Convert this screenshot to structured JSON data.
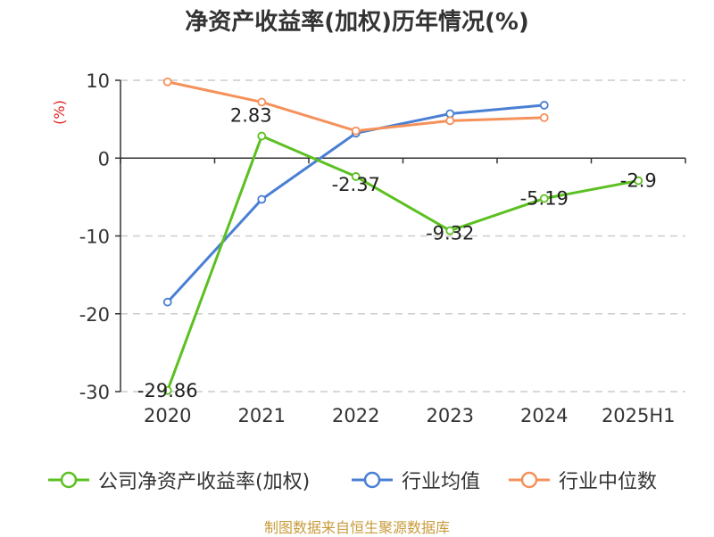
{
  "chart_data": {
    "type": "line",
    "title": "净资产收益率(加权)历年情况(%)",
    "ylabel": "(%)",
    "categories": [
      "2020",
      "2021",
      "2022",
      "2023",
      "2024",
      "2025H1"
    ],
    "ylim": [
      -30,
      10
    ],
    "yticks": [
      10,
      0,
      -10,
      -20,
      -30
    ],
    "grid": true,
    "legend_position": "bottom",
    "series": [
      {
        "name": "公司净资产收益率(加权)",
        "color": "#5cc021",
        "values": [
          -29.86,
          2.83,
          -2.37,
          -9.32,
          -5.19,
          -2.9
        ],
        "labels": [
          "-29.86",
          "2.83",
          "-2.37",
          "-9.32",
          "-5.19",
          "-2.9"
        ]
      },
      {
        "name": "行业均值",
        "color": "#4a7fd4",
        "values": [
          -18.5,
          -5.3,
          3.2,
          5.7,
          6.8,
          null
        ]
      },
      {
        "name": "行业中位数",
        "color": "#f5915a",
        "values": [
          9.8,
          7.2,
          3.5,
          4.8,
          5.2,
          null
        ]
      }
    ]
  },
  "source": "制图数据来自恒生聚源数据库",
  "colors": {
    "title": "#333333",
    "ylabel": "#e02020",
    "grid": "#cccccc",
    "axis": "#333333"
  }
}
